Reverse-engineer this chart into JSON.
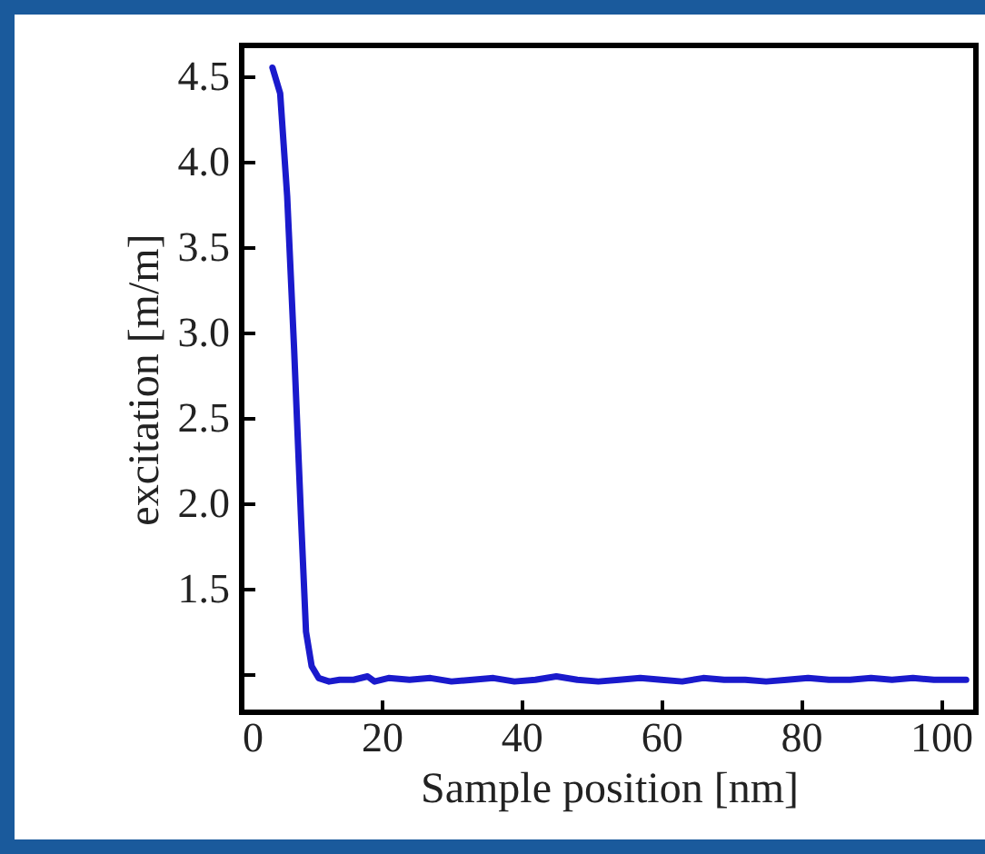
{
  "chart_data": {
    "type": "line",
    "xlabel": "Sample position [nm]",
    "ylabel": "excitation [m/m]",
    "x": [
      4.4,
      5.5,
      6.5,
      7.5,
      8.5,
      9.2,
      10,
      11,
      12.5,
      14,
      16,
      18,
      19,
      21,
      24,
      27,
      30,
      33,
      36,
      39,
      42,
      45,
      48,
      51,
      54,
      57,
      60,
      63,
      66,
      69,
      72,
      75,
      78,
      81,
      84,
      87,
      90,
      93,
      96,
      99,
      102,
      103.6
    ],
    "series": [
      {
        "color": "#1a1acc",
        "values": [
          4.55,
          4.4,
          3.8,
          2.9,
          1.9,
          1.25,
          1.05,
          0.98,
          0.96,
          0.97,
          0.97,
          0.99,
          0.96,
          0.98,
          0.97,
          0.98,
          0.96,
          0.97,
          0.98,
          0.96,
          0.97,
          0.99,
          0.97,
          0.96,
          0.97,
          0.98,
          0.97,
          0.96,
          0.98,
          0.97,
          0.97,
          0.96,
          0.97,
          0.98,
          0.97,
          0.97,
          0.98,
          0.97,
          0.98,
          0.97,
          0.97,
          0.97
        ]
      }
    ],
    "xlim": [
      0,
      105
    ],
    "xticks": [
      0,
      20,
      40,
      60,
      80,
      100
    ],
    "ylim": [
      0.78,
      4.68
    ],
    "yticks": [
      {
        "value": 1,
        "label": null
      },
      1.5,
      {
        "value": 2,
        "label": "2.0"
      },
      2.5,
      {
        "value": 3,
        "label": "3.0"
      },
      3.5,
      {
        "value": 4,
        "label": "4.0"
      },
      4.5
    ],
    "marker": "none",
    "line_style": "solid"
  }
}
